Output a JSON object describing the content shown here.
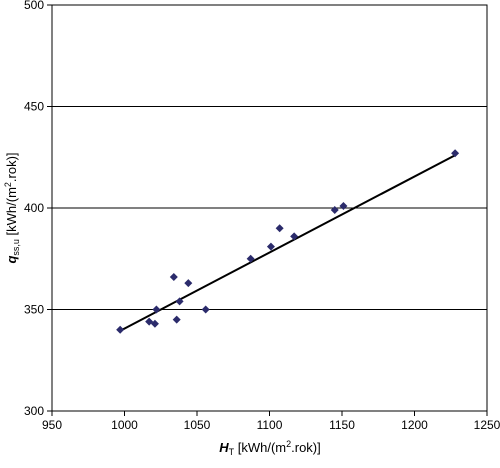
{
  "chart_data": {
    "type": "scatter",
    "x_label": {
      "main": "H",
      "sub": "T",
      "pre": " [kWh/(m",
      "sup": "2",
      "post": ".rok)]"
    },
    "y_label": {
      "main": "q",
      "sub": "ss,u",
      "pre": " [kWh/(m",
      "sup": "2",
      "post": ".rok)]"
    },
    "x": [
      997,
      1017,
      1021,
      1022,
      1034,
      1036,
      1038,
      1044,
      1056,
      1087,
      1101,
      1107,
      1117,
      1145,
      1151,
      1228
    ],
    "series": [
      {
        "name": "q",
        "color": "#2b2b6b",
        "values": [
          340,
          344,
          343,
          350,
          366,
          345,
          354,
          363,
          350,
          375,
          381,
          390,
          386,
          399,
          401,
          427
        ]
      }
    ],
    "trendline": {
      "x": [
        997,
        1228
      ],
      "y": [
        339.5,
        426
      ],
      "color": "#000000"
    },
    "xlim": [
      950,
      1250
    ],
    "xticks": [
      950,
      1000,
      1050,
      1100,
      1150,
      1200,
      1250
    ],
    "ylim": [
      300,
      500
    ],
    "yticks": [
      300,
      350,
      400,
      450,
      500
    ],
    "grid": true
  }
}
